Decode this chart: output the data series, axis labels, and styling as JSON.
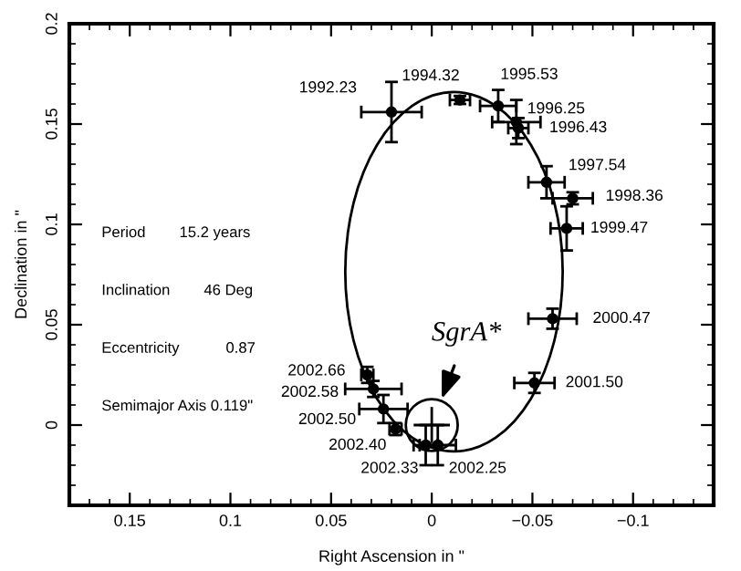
{
  "chart_data": {
    "type": "scatter",
    "xlabel": "Right Ascension in \"",
    "ylabel": "Declination in \"",
    "xlim": [
      0.18,
      -0.14
    ],
    "ylim": [
      -0.04,
      0.2
    ],
    "xticks": [
      0.15,
      0.1,
      0.05,
      0,
      {
        "value": -0.05,
        "label": "−0.05"
      },
      {
        "value": -0.1,
        "label": "−0.1"
      }
    ],
    "yticks": [
      0,
      0.05,
      0.1,
      0.15,
      0.2
    ],
    "grid": false,
    "legend": false,
    "series": [
      {
        "color": "#000000",
        "marker": "circle",
        "x": [
          0.02,
          -0.014,
          -0.033,
          -0.042,
          -0.043,
          -0.057,
          -0.07,
          -0.067,
          -0.06,
          -0.051,
          0.032,
          0.029,
          0.024,
          0.018,
          0.003,
          -0.003
        ],
        "values": [
          0.156,
          0.162,
          0.159,
          0.151,
          0.148,
          0.121,
          0.113,
          0.098,
          0.053,
          0.021,
          0.025,
          0.018,
          0.008,
          -0.002,
          -0.01,
          -0.01
        ],
        "xerrors": [
          0.015,
          0.005,
          0.009,
          0.012,
          0.005,
          0.009,
          0.01,
          0.008,
          0.012,
          0.01,
          0.003,
          0.014,
          0.012,
          0.003,
          0.006,
          0.009
        ],
        "errors": [
          0.015,
          0.002,
          0.008,
          0.011,
          0.005,
          0.008,
          0.003,
          0.011,
          0.005,
          0.005,
          0.004,
          0.004,
          0.007,
          0.003,
          0.01,
          0.01
        ]
      },
      {
        "color": "#000000",
        "marker": "circle",
        "x": [
          0
        ],
        "values": [
          0
        ],
        "xerrors": [
          0.009
        ],
        "errors": [
          0.009
        ]
      }
    ],
    "annotations": [
      {
        "text": "1992.23",
        "x": 0.02,
        "y": 0.156
      },
      {
        "text": "1994.32",
        "x": -0.014,
        "y": 0.162
      },
      {
        "text": "1995.53",
        "x": -0.033,
        "y": 0.159
      },
      {
        "text": "1996.25",
        "x": -0.042,
        "y": 0.151
      },
      {
        "text": "1996.43",
        "x": -0.043,
        "y": 0.148
      },
      {
        "text": "1997.54",
        "x": -0.057,
        "y": 0.121
      },
      {
        "text": "1998.36",
        "x": -0.07,
        "y": 0.113
      },
      {
        "text": "1999.47",
        "x": -0.067,
        "y": 0.098
      },
      {
        "text": "2000.47",
        "x": -0.06,
        "y": 0.053
      },
      {
        "text": "2001.50",
        "x": -0.051,
        "y": 0.021
      },
      {
        "text": "2002.66",
        "x": 0.032,
        "y": 0.025
      },
      {
        "text": "2002.58",
        "x": 0.029,
        "y": 0.018
      },
      {
        "text": "2002.50",
        "x": 0.024,
        "y": 0.008
      },
      {
        "text": "2002.40",
        "x": 0.018,
        "y": -0.002
      },
      {
        "text": "2002.33",
        "x": 0.003,
        "y": -0.01
      },
      {
        "text": "2002.25",
        "x": -0.003,
        "y": -0.01
      },
      {
        "text": "SgrA*",
        "x": 0,
        "y": 0
      },
      "Period        15.2 years",
      "Inclination        46 Deg",
      "Eccentricity           0.87",
      "Semimajor Axis 0.119\""
    ]
  }
}
